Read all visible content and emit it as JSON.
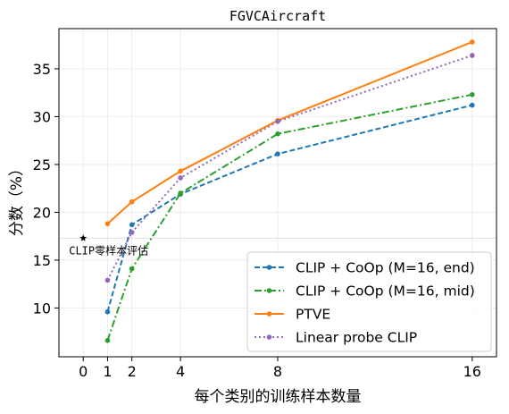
{
  "chart_data": {
    "type": "line",
    "title": "FGVCAircraft",
    "xlabel": "每个类别的训练样本数量",
    "ylabel": "分数（%）",
    "xticks": [
      0,
      1,
      2,
      4,
      8,
      16
    ],
    "yticks": [
      10,
      15,
      20,
      25,
      30,
      35
    ],
    "xlim": [
      -1,
      17
    ],
    "ylim": [
      4.9,
      39.2
    ],
    "grid": true,
    "legend_position": "lower-right",
    "series": [
      {
        "name": "CLIP + CoOp (M=16, end)",
        "color": "#1f77b4",
        "dash": "dashed",
        "x": [
          1,
          2,
          4,
          8,
          16
        ],
        "values": [
          9.6,
          18.7,
          21.9,
          26.1,
          31.2
        ]
      },
      {
        "name": "CLIP + CoOp (M=16, mid)",
        "color": "#2ca02c",
        "dash": "dashdot",
        "x": [
          1,
          2,
          4,
          8,
          16
        ],
        "values": [
          6.6,
          14.1,
          22.0,
          28.2,
          32.3
        ]
      },
      {
        "name": "PTVE",
        "color": "#ff7f0e",
        "dash": "solid",
        "x": [
          1,
          2,
          4,
          8,
          16
        ],
        "values": [
          18.8,
          21.1,
          24.3,
          29.6,
          37.8
        ]
      },
      {
        "name": "Linear probe CLIP",
        "color": "#9467bd",
        "dash": "dotted",
        "x": [
          1,
          2,
          4,
          8,
          16
        ],
        "values": [
          12.9,
          17.9,
          23.6,
          29.5,
          36.4
        ]
      }
    ],
    "zero_shot": {
      "label": "CLIP零样本评估",
      "x": 0,
      "value": 17.3
    }
  }
}
